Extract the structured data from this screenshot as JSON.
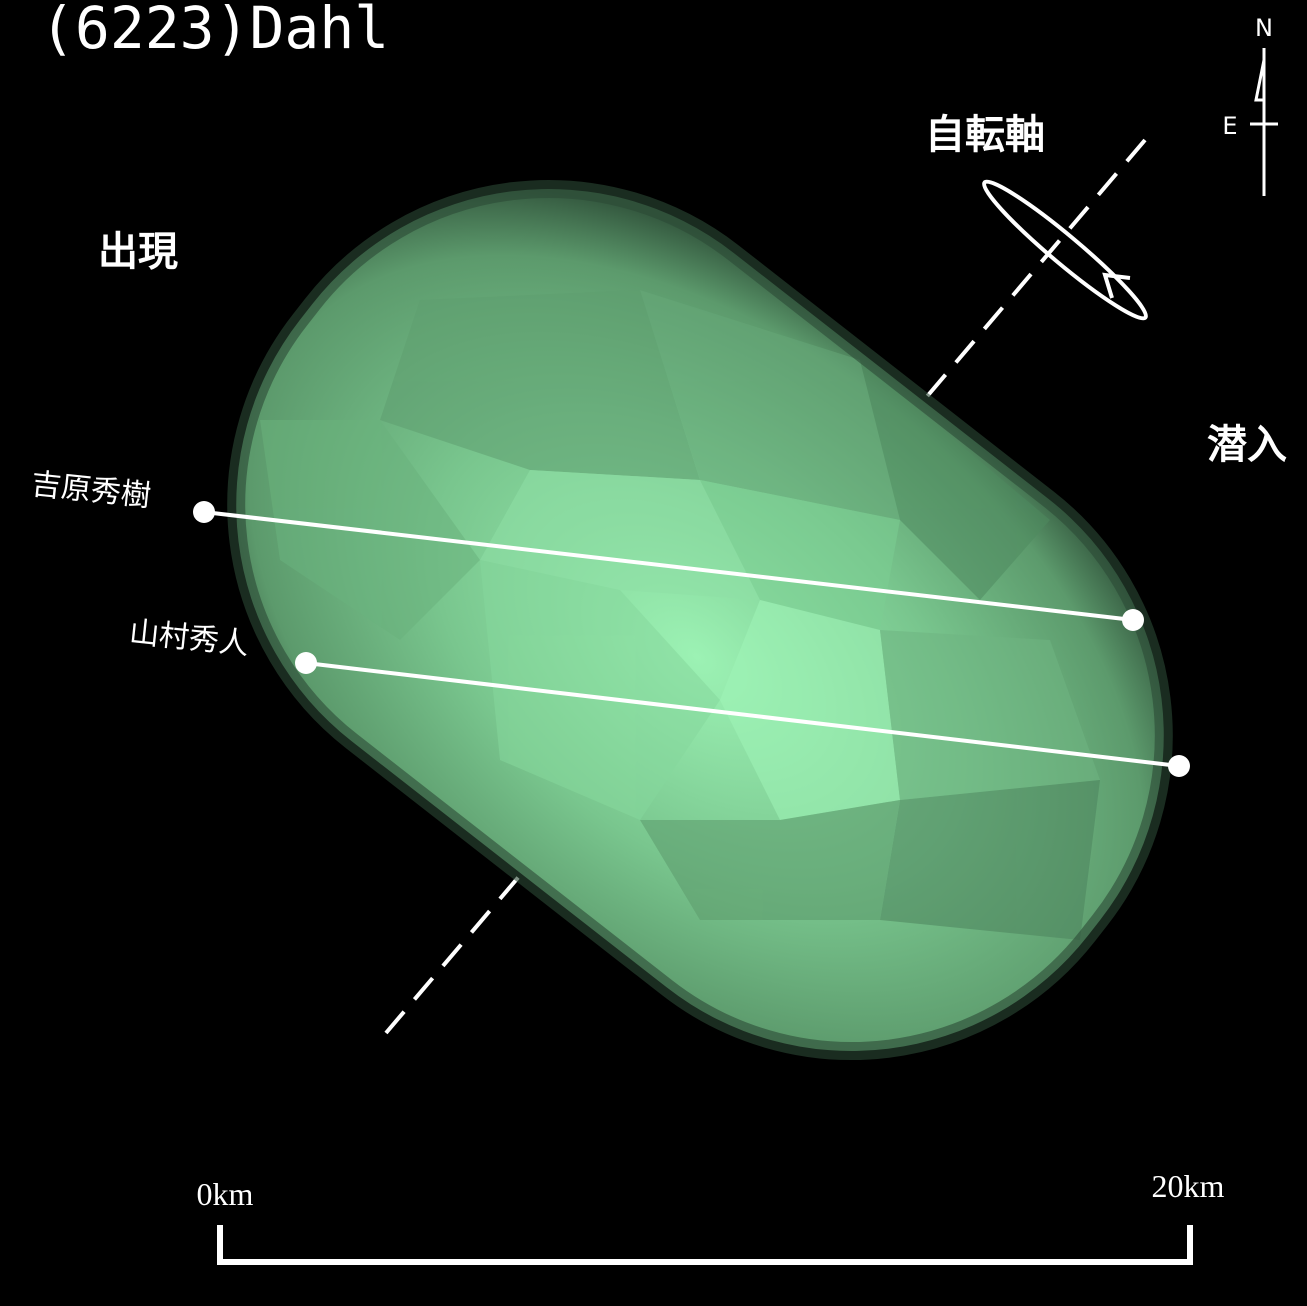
{
  "header": {
    "title": "(6223)Dahl"
  },
  "labels": {
    "rotation_axis": "自転軸",
    "appearance": "出現",
    "disappearance": "潜入"
  },
  "observers": [
    {
      "name": "吉原秀樹"
    },
    {
      "name": "山村秀人"
    }
  ],
  "scale": {
    "start": "0km",
    "end": "20km"
  },
  "compass": {
    "north": "N",
    "east": "E"
  }
}
